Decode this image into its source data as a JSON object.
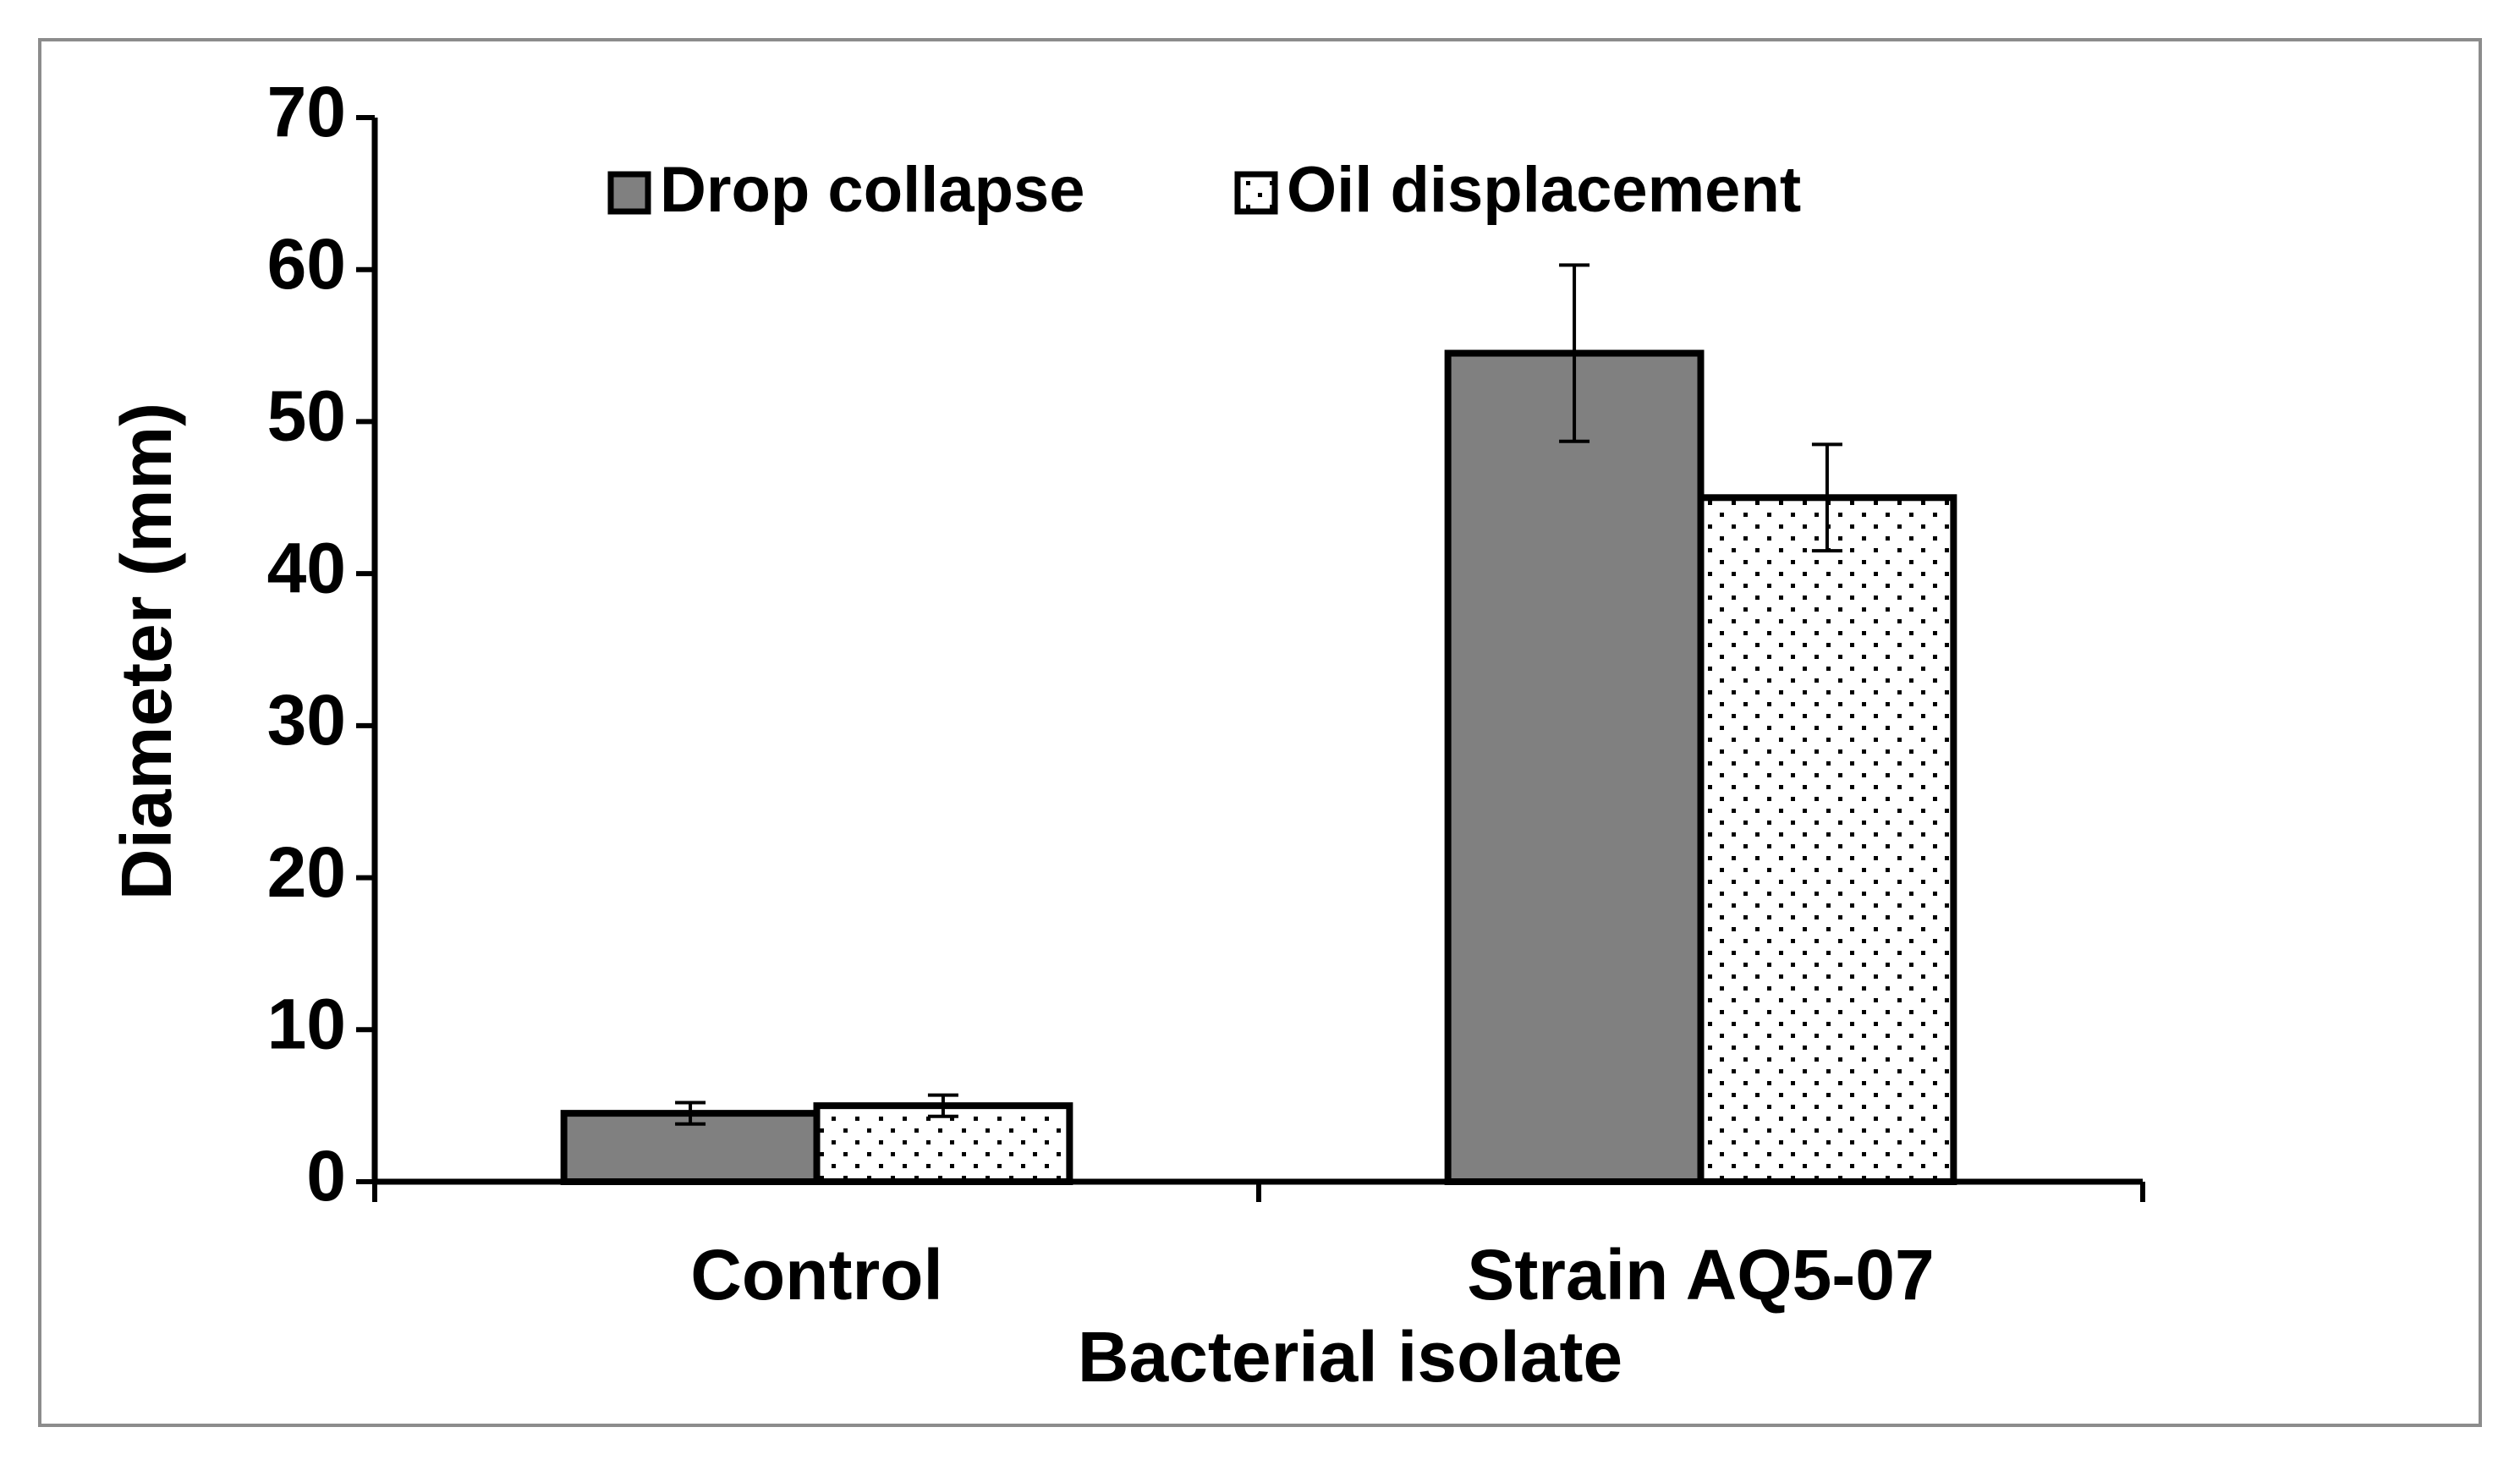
{
  "chart_data": {
    "type": "bar",
    "categories": [
      "Control",
      "Strain AQ5-07"
    ],
    "series": [
      {
        "name": "Drop collapse",
        "color": "#808080",
        "values": [
          4.5,
          54.5
        ],
        "errors": [
          0.7,
          5.8
        ]
      },
      {
        "name": "Oil displacement",
        "color": "#ffffff",
        "values": [
          5.0,
          45.0
        ],
        "errors": [
          0.7,
          3.5
        ]
      }
    ],
    "x_label": "Bacterial isolate",
    "y_label": "Diameter (mm)",
    "ylim": [
      0,
      70
    ],
    "yticks": [
      0,
      10,
      20,
      30,
      40,
      50,
      60,
      70
    ],
    "legend": "top"
  }
}
